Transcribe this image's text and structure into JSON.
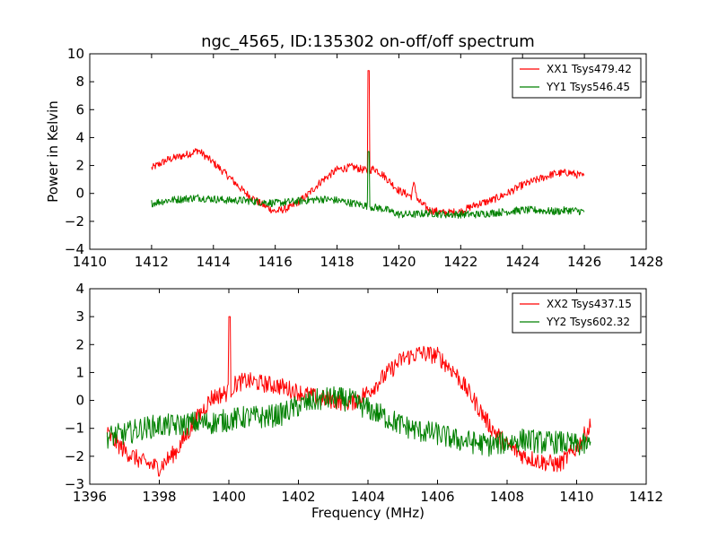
{
  "figure": {
    "title": "ngc_4565, ID:135302 on-off/off spectrum"
  },
  "chart_data": [
    {
      "type": "line",
      "panel": "top",
      "xlim": [
        1410,
        1428
      ],
      "ylim": [
        -4,
        10
      ],
      "xticks": [
        1410,
        1412,
        1414,
        1416,
        1418,
        1420,
        1422,
        1424,
        1426,
        1428
      ],
      "yticks": [
        -4,
        -2,
        0,
        2,
        4,
        6,
        8,
        10
      ],
      "xlabel": "",
      "ylabel": "Power in Kelvin",
      "legend_position": "top-right",
      "series": [
        {
          "name": "XX1 Tsys479.42",
          "color": "#ff0000",
          "x": [
            1412,
            1412.5,
            1413,
            1413.3,
            1413.5,
            1414,
            1414.5,
            1415,
            1415.5,
            1416,
            1416.5,
            1417,
            1417.5,
            1418,
            1418.5,
            1419,
            1419.02,
            1419.2,
            1419.5,
            1420,
            1420.4,
            1420.5,
            1420.6,
            1421,
            1421.5,
            1422,
            1422.5,
            1423,
            1423.5,
            1424,
            1424.5,
            1425,
            1425.5,
            1426
          ],
          "y": [
            1.8,
            2.4,
            2.7,
            2.9,
            3.1,
            2.2,
            1.2,
            0.1,
            -0.7,
            -1.3,
            -1.0,
            -0.2,
            0.9,
            1.7,
            1.9,
            1.6,
            8.8,
            1.8,
            1.3,
            0.2,
            -0.2,
            0.8,
            -0.5,
            -1.2,
            -1.4,
            -1.3,
            -0.8,
            -0.5,
            0.0,
            0.6,
            1.0,
            1.4,
            1.5,
            1.2
          ]
        },
        {
          "name": "YY1 Tsys546.45",
          "color": "#008000",
          "x": [
            1412,
            1412.5,
            1413,
            1413.5,
            1414,
            1414.5,
            1415,
            1415.5,
            1416,
            1416.5,
            1417,
            1417.5,
            1418,
            1418.5,
            1419,
            1419.02,
            1419.2,
            1419.5,
            1420,
            1420.5,
            1421,
            1421.5,
            1422,
            1422.5,
            1423,
            1423.5,
            1424,
            1424.5,
            1425,
            1425.5,
            1426
          ],
          "y": [
            -0.7,
            -0.5,
            -0.4,
            -0.3,
            -0.4,
            -0.5,
            -0.5,
            -0.6,
            -0.7,
            -0.6,
            -0.5,
            -0.4,
            -0.5,
            -0.7,
            -0.9,
            3.0,
            -1.0,
            -1.1,
            -1.5,
            -1.5,
            -1.4,
            -1.5,
            -1.5,
            -1.5,
            -1.4,
            -1.3,
            -1.2,
            -1.2,
            -1.3,
            -1.2,
            -1.3
          ]
        }
      ]
    },
    {
      "type": "line",
      "panel": "bottom",
      "xlim": [
        1396,
        1412
      ],
      "ylim": [
        -3,
        4
      ],
      "xticks": [
        1396,
        1398,
        1400,
        1402,
        1404,
        1406,
        1408,
        1410,
        1412
      ],
      "yticks": [
        -3,
        -2,
        -1,
        0,
        1,
        2,
        3,
        4
      ],
      "xlabel": "Frequency (MHz)",
      "ylabel": "",
      "legend_position": "top-right",
      "series": [
        {
          "name": "XX2 Tsys437.15",
          "color": "#ff0000",
          "x": [
            1396.5,
            1397,
            1397.5,
            1398,
            1398.5,
            1399,
            1399.5,
            1400,
            1400.02,
            1400.2,
            1400.5,
            1401,
            1401.5,
            1402,
            1402.5,
            1403,
            1403.5,
            1404,
            1404.5,
            1405,
            1405.5,
            1406,
            1406.5,
            1407,
            1407.5,
            1408,
            1408.5,
            1409,
            1409.5,
            1410,
            1410.4
          ],
          "y": [
            -1.2,
            -1.8,
            -2.2,
            -2.4,
            -1.8,
            -0.8,
            0.1,
            0.3,
            3.0,
            0.6,
            0.7,
            0.6,
            0.5,
            0.3,
            0.1,
            0.0,
            -0.1,
            0.3,
            0.9,
            1.5,
            1.7,
            1.6,
            1.0,
            0.1,
            -0.9,
            -1.6,
            -2.0,
            -2.2,
            -2.3,
            -1.7,
            -0.9
          ]
        },
        {
          "name": "YY2 Tsys602.32",
          "color": "#008000",
          "x": [
            1396.5,
            1397,
            1397.5,
            1398,
            1398.5,
            1399,
            1399.5,
            1400,
            1400.5,
            1401,
            1401.5,
            1402,
            1402.5,
            1403,
            1403.5,
            1404,
            1404.5,
            1405,
            1405.5,
            1406,
            1406.5,
            1407,
            1407.5,
            1408,
            1408.5,
            1409,
            1409.5,
            1410,
            1410.4
          ],
          "y": [
            -1.3,
            -1.2,
            -1.0,
            -0.9,
            -0.9,
            -0.8,
            -0.8,
            -0.7,
            -0.6,
            -0.6,
            -0.5,
            -0.2,
            0.0,
            0.1,
            0.0,
            -0.3,
            -0.6,
            -0.9,
            -1.1,
            -1.2,
            -1.4,
            -1.5,
            -1.6,
            -1.5,
            -1.4,
            -1.5,
            -1.5,
            -1.6,
            -1.6
          ]
        }
      ]
    }
  ]
}
